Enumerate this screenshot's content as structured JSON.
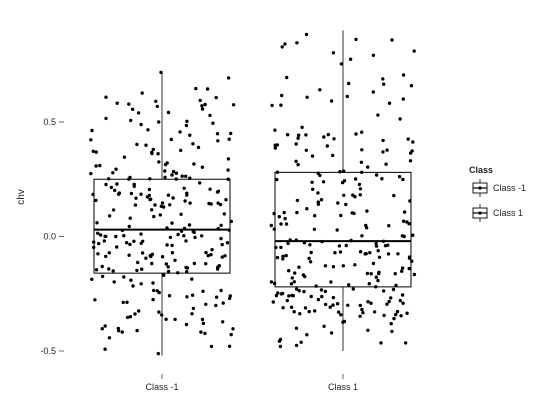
{
  "chart_data": {
    "type": "boxplot",
    "title": "",
    "xlabel": "",
    "ylabel": "chv",
    "ylim": [
      -0.58,
      0.92
    ],
    "yticks": [
      -0.5,
      0.0,
      0.5
    ],
    "ytick_labels": [
      "-0.5",
      "0.0",
      "0.5"
    ],
    "categories": [
      "Class -1",
      "Class 1"
    ],
    "grid": false,
    "legend": {
      "title": "Class",
      "position": "right",
      "entries": [
        "Class -1",
        "Class 1"
      ]
    },
    "boxes": [
      {
        "name": "Class -1",
        "whisker_low": -0.52,
        "q1": -0.16,
        "median": 0.03,
        "q3": 0.25,
        "whisker_high": 0.72
      },
      {
        "name": "Class 1",
        "whisker_low": -0.5,
        "q1": -0.22,
        "median": -0.02,
        "q3": 0.28,
        "whisker_high": 0.9
      }
    ],
    "jitter_points": {
      "count_per_class": 260,
      "note_visible": "jittered raw observations overlaid on each box"
    }
  }
}
